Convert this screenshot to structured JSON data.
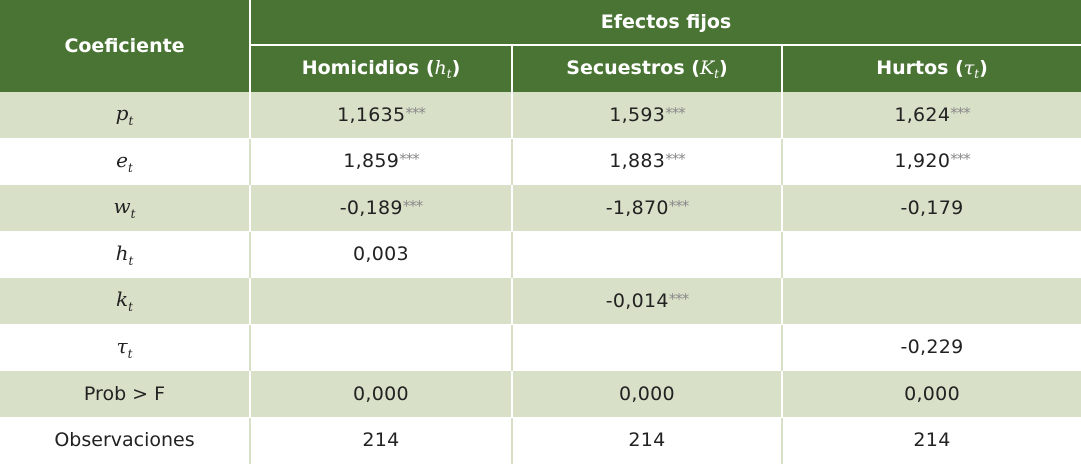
{
  "header": {
    "coeficiente": "Coeficiente",
    "group": "Efectos fijos",
    "columns": [
      {
        "label": "Homicidios (",
        "symbol": "h",
        "subscript": "t",
        "close": ")"
      },
      {
        "label": "Secuestros (",
        "symbol": "K",
        "subscript": "t",
        "close": ")"
      },
      {
        "label": "Hurtos (",
        "symbol": "τ",
        "subscript": "t",
        "close": ")"
      }
    ]
  },
  "rows": [
    {
      "var": "p",
      "sub": "t",
      "cells": [
        {
          "v": "1,1635",
          "s": "***"
        },
        {
          "v": "1,593",
          "s": "***"
        },
        {
          "v": "1,624",
          "s": "***"
        }
      ]
    },
    {
      "var": "e",
      "sub": "t",
      "cells": [
        {
          "v": "1,859",
          "s": "***"
        },
        {
          "v": "1,883",
          "s": "***"
        },
        {
          "v": "1,920",
          "s": "***"
        }
      ]
    },
    {
      "var": "w",
      "sub": "t",
      "cells": [
        {
          "v": "-0,189",
          "s": "***"
        },
        {
          "v": "-1,870",
          "s": "***"
        },
        {
          "v": "-0,179",
          "s": ""
        }
      ]
    },
    {
      "var": "h",
      "sub": "t",
      "cells": [
        {
          "v": "0,003",
          "s": ""
        },
        {
          "v": "",
          "s": ""
        },
        {
          "v": "",
          "s": ""
        }
      ]
    },
    {
      "var": "k",
      "sub": "t",
      "cells": [
        {
          "v": "",
          "s": ""
        },
        {
          "v": "-0,014",
          "s": "***"
        },
        {
          "v": "",
          "s": ""
        }
      ]
    },
    {
      "var": "τ",
      "sub": "t",
      "cells": [
        {
          "v": "",
          "s": ""
        },
        {
          "v": "",
          "s": ""
        },
        {
          "v": "-0,229",
          "s": ""
        }
      ]
    },
    {
      "label": "Prob > F",
      "cells": [
        {
          "v": "0,000",
          "s": ""
        },
        {
          "v": "0,000",
          "s": ""
        },
        {
          "v": "0,000",
          "s": ""
        }
      ]
    },
    {
      "label": "Observaciones",
      "cells": [
        {
          "v": "214",
          "s": ""
        },
        {
          "v": "214",
          "s": ""
        },
        {
          "v": "214",
          "s": ""
        }
      ]
    }
  ],
  "colors": {
    "header_bg": "#4a7434",
    "row_shade": "#d8e0c8",
    "row_plain": "#ffffff",
    "stars": "#8a8a8a"
  }
}
